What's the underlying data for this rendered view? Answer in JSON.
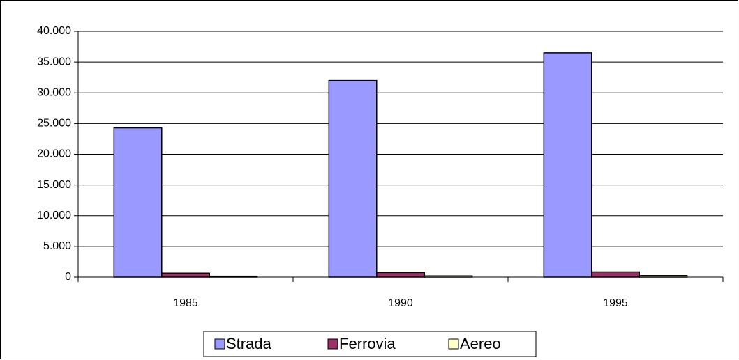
{
  "chart_data": {
    "type": "bar",
    "categories": [
      "1985",
      "1990",
      "1995"
    ],
    "series": [
      {
        "name": "Strada",
        "color": "#9999ff",
        "values": [
          24300,
          32000,
          36500
        ]
      },
      {
        "name": "Ferrovia",
        "color": "#993366",
        "values": [
          650,
          750,
          850
        ]
      },
      {
        "name": "Aereo",
        "color": "#ffffcc",
        "values": [
          150,
          200,
          250
        ]
      }
    ],
    "ylim": [
      0,
      40000
    ],
    "yticks": [
      0,
      {
        "value": 5000,
        "label": "5.000"
      },
      {
        "value": 10000,
        "label": "10.000"
      },
      {
        "value": 15000,
        "label": "15.000"
      },
      {
        "value": 20000,
        "label": "20.000"
      },
      {
        "value": 25000,
        "label": "25.000"
      },
      {
        "value": 30000,
        "label": "30.000"
      },
      {
        "value": 35000,
        "label": "35.000"
      },
      {
        "value": 40000,
        "label": "40.000"
      }
    ],
    "grid": true,
    "legend": "bottom"
  }
}
